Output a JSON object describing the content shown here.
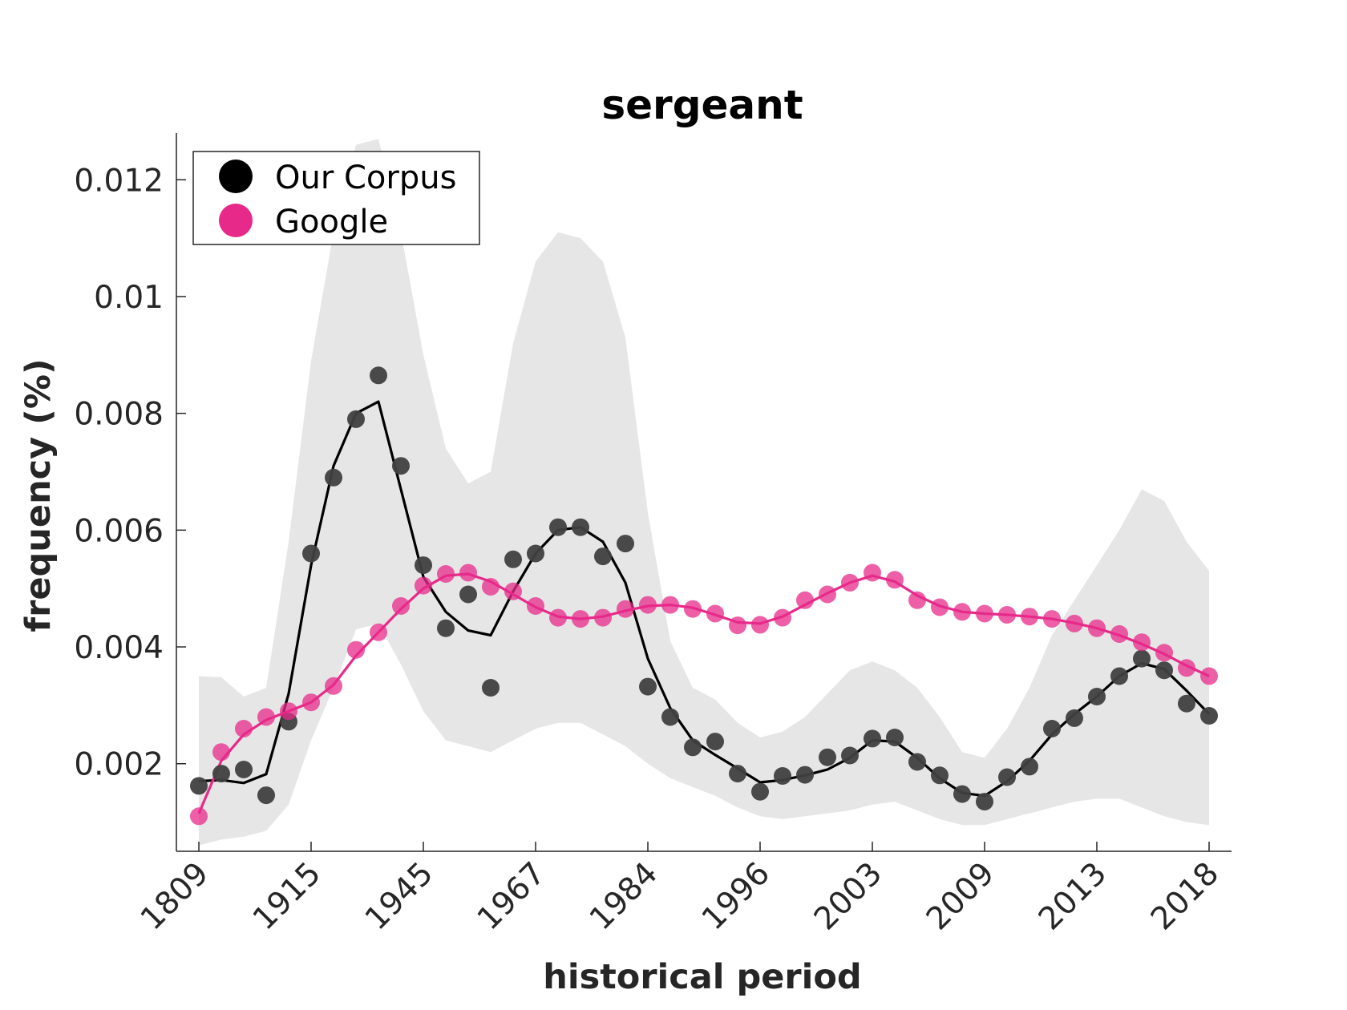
{
  "chart_data": {
    "type": "scatter",
    "title": "sergeant",
    "xlabel": "historical period",
    "ylabel": "frequency (%)",
    "ylim": [
      0.0005,
      0.0128
    ],
    "yticks": [
      "0.002",
      "0.004",
      "0.006",
      "0.008",
      "0.01",
      "0.012"
    ],
    "ytick_values": [
      0.002,
      0.004,
      0.006,
      0.008,
      0.01,
      0.012
    ],
    "xtick_labels": [
      "1809",
      "1915",
      "1945",
      "1967",
      "1984",
      "1996",
      "2003",
      "2009",
      "2013",
      "2018"
    ],
    "xtick_indices": [
      0,
      5,
      10,
      15,
      20,
      25,
      30,
      35,
      40,
      45
    ],
    "n_points": 46,
    "grid": false,
    "legend_position": "top-left",
    "band": {
      "color": "#e6e6e6",
      "upper": [
        0.0035,
        0.00348,
        0.00315,
        0.0033,
        0.0058,
        0.0089,
        0.0111,
        0.0126,
        0.0127,
        0.0111,
        0.009,
        0.0074,
        0.0068,
        0.007,
        0.0092,
        0.0106,
        0.0111,
        0.011,
        0.0106,
        0.0093,
        0.0063,
        0.0041,
        0.0033,
        0.0031,
        0.0027,
        0.00245,
        0.00255,
        0.0028,
        0.0032,
        0.0036,
        0.00375,
        0.0036,
        0.0033,
        0.0028,
        0.0022,
        0.0021,
        0.0026,
        0.0033,
        0.0042,
        0.0048,
        0.0054,
        0.006,
        0.0067,
        0.0065,
        0.0058,
        0.0053
      ],
      "lower": [
        0.0006,
        0.0007,
        0.00075,
        0.00085,
        0.0013,
        0.0024,
        0.0033,
        0.0043,
        0.0044,
        0.0037,
        0.0029,
        0.0024,
        0.0023,
        0.0022,
        0.0024,
        0.0026,
        0.0027,
        0.0027,
        0.0025,
        0.0023,
        0.002,
        0.00175,
        0.0016,
        0.00145,
        0.00125,
        0.0011,
        0.00105,
        0.0011,
        0.00115,
        0.0012,
        0.0013,
        0.00135,
        0.0012,
        0.00105,
        0.00095,
        0.00095,
        0.00105,
        0.00115,
        0.00125,
        0.00135,
        0.0014,
        0.0014,
        0.00125,
        0.0011,
        0.001,
        0.00095
      ]
    },
    "series": [
      {
        "name": "Our Corpus",
        "color": "#000000",
        "marker_color": "#404040",
        "points": [
          0.00162,
          0.00183,
          0.0019,
          0.00146,
          0.00272,
          0.0056,
          0.0069,
          0.0079,
          0.00865,
          0.0071,
          0.0054,
          0.00432,
          0.0049,
          0.0033,
          0.0055,
          0.0056,
          0.00605,
          0.00605,
          0.00555,
          0.00577,
          0.00332,
          0.0028,
          0.00228,
          0.00238,
          0.00183,
          0.00152,
          0.00179,
          0.00181,
          0.00211,
          0.00214,
          0.00243,
          0.00245,
          0.00203,
          0.0018,
          0.00148,
          0.00135,
          0.00177,
          0.00195,
          0.0026,
          0.00278,
          0.00315,
          0.0035,
          0.0038,
          0.0036,
          0.00303,
          0.00282
        ],
        "line": [
          0.0017,
          0.00172,
          0.00167,
          0.00182,
          0.0032,
          0.0054,
          0.0071,
          0.008,
          0.0082,
          0.0067,
          0.0052,
          0.0046,
          0.00428,
          0.0042,
          0.00495,
          0.0056,
          0.006,
          0.00605,
          0.0058,
          0.0051,
          0.0038,
          0.00295,
          0.0024,
          0.00215,
          0.00192,
          0.00168,
          0.00172,
          0.0018,
          0.0019,
          0.0021,
          0.0024,
          0.00238,
          0.0021,
          0.00175,
          0.0015,
          0.00145,
          0.0017,
          0.00205,
          0.0025,
          0.00285,
          0.00315,
          0.0035,
          0.00372,
          0.00362,
          0.00325,
          0.00285
        ]
      },
      {
        "name": "Google",
        "color": "#e7298a",
        "marker_color": "#e7298a",
        "points": [
          0.0011,
          0.0022,
          0.0026,
          0.0028,
          0.0029,
          0.00305,
          0.00333,
          0.00395,
          0.00425,
          0.0047,
          0.00505,
          0.00525,
          0.00527,
          0.00503,
          0.00495,
          0.0047,
          0.0045,
          0.00448,
          0.0045,
          0.00465,
          0.00472,
          0.00472,
          0.00465,
          0.00457,
          0.00437,
          0.00438,
          0.0045,
          0.0048,
          0.0049,
          0.0051,
          0.00527,
          0.00515,
          0.0048,
          0.00468,
          0.0046,
          0.00457,
          0.00455,
          0.00452,
          0.00448,
          0.0044,
          0.00432,
          0.00422,
          0.00408,
          0.0039,
          0.00364,
          0.0035
        ],
        "line": [
          0.00115,
          0.00205,
          0.0025,
          0.00275,
          0.0029,
          0.00305,
          0.00335,
          0.00385,
          0.00425,
          0.00465,
          0.005,
          0.00522,
          0.00525,
          0.00512,
          0.0049,
          0.00468,
          0.00452,
          0.00448,
          0.00452,
          0.00462,
          0.0047,
          0.00472,
          0.00467,
          0.00455,
          0.00442,
          0.0044,
          0.00452,
          0.00472,
          0.00492,
          0.0051,
          0.00522,
          0.00512,
          0.00488,
          0.0047,
          0.0046,
          0.00457,
          0.00455,
          0.00452,
          0.00448,
          0.00441,
          0.00432,
          0.0042,
          0.00405,
          0.00388,
          0.00368,
          0.0035
        ]
      }
    ]
  }
}
